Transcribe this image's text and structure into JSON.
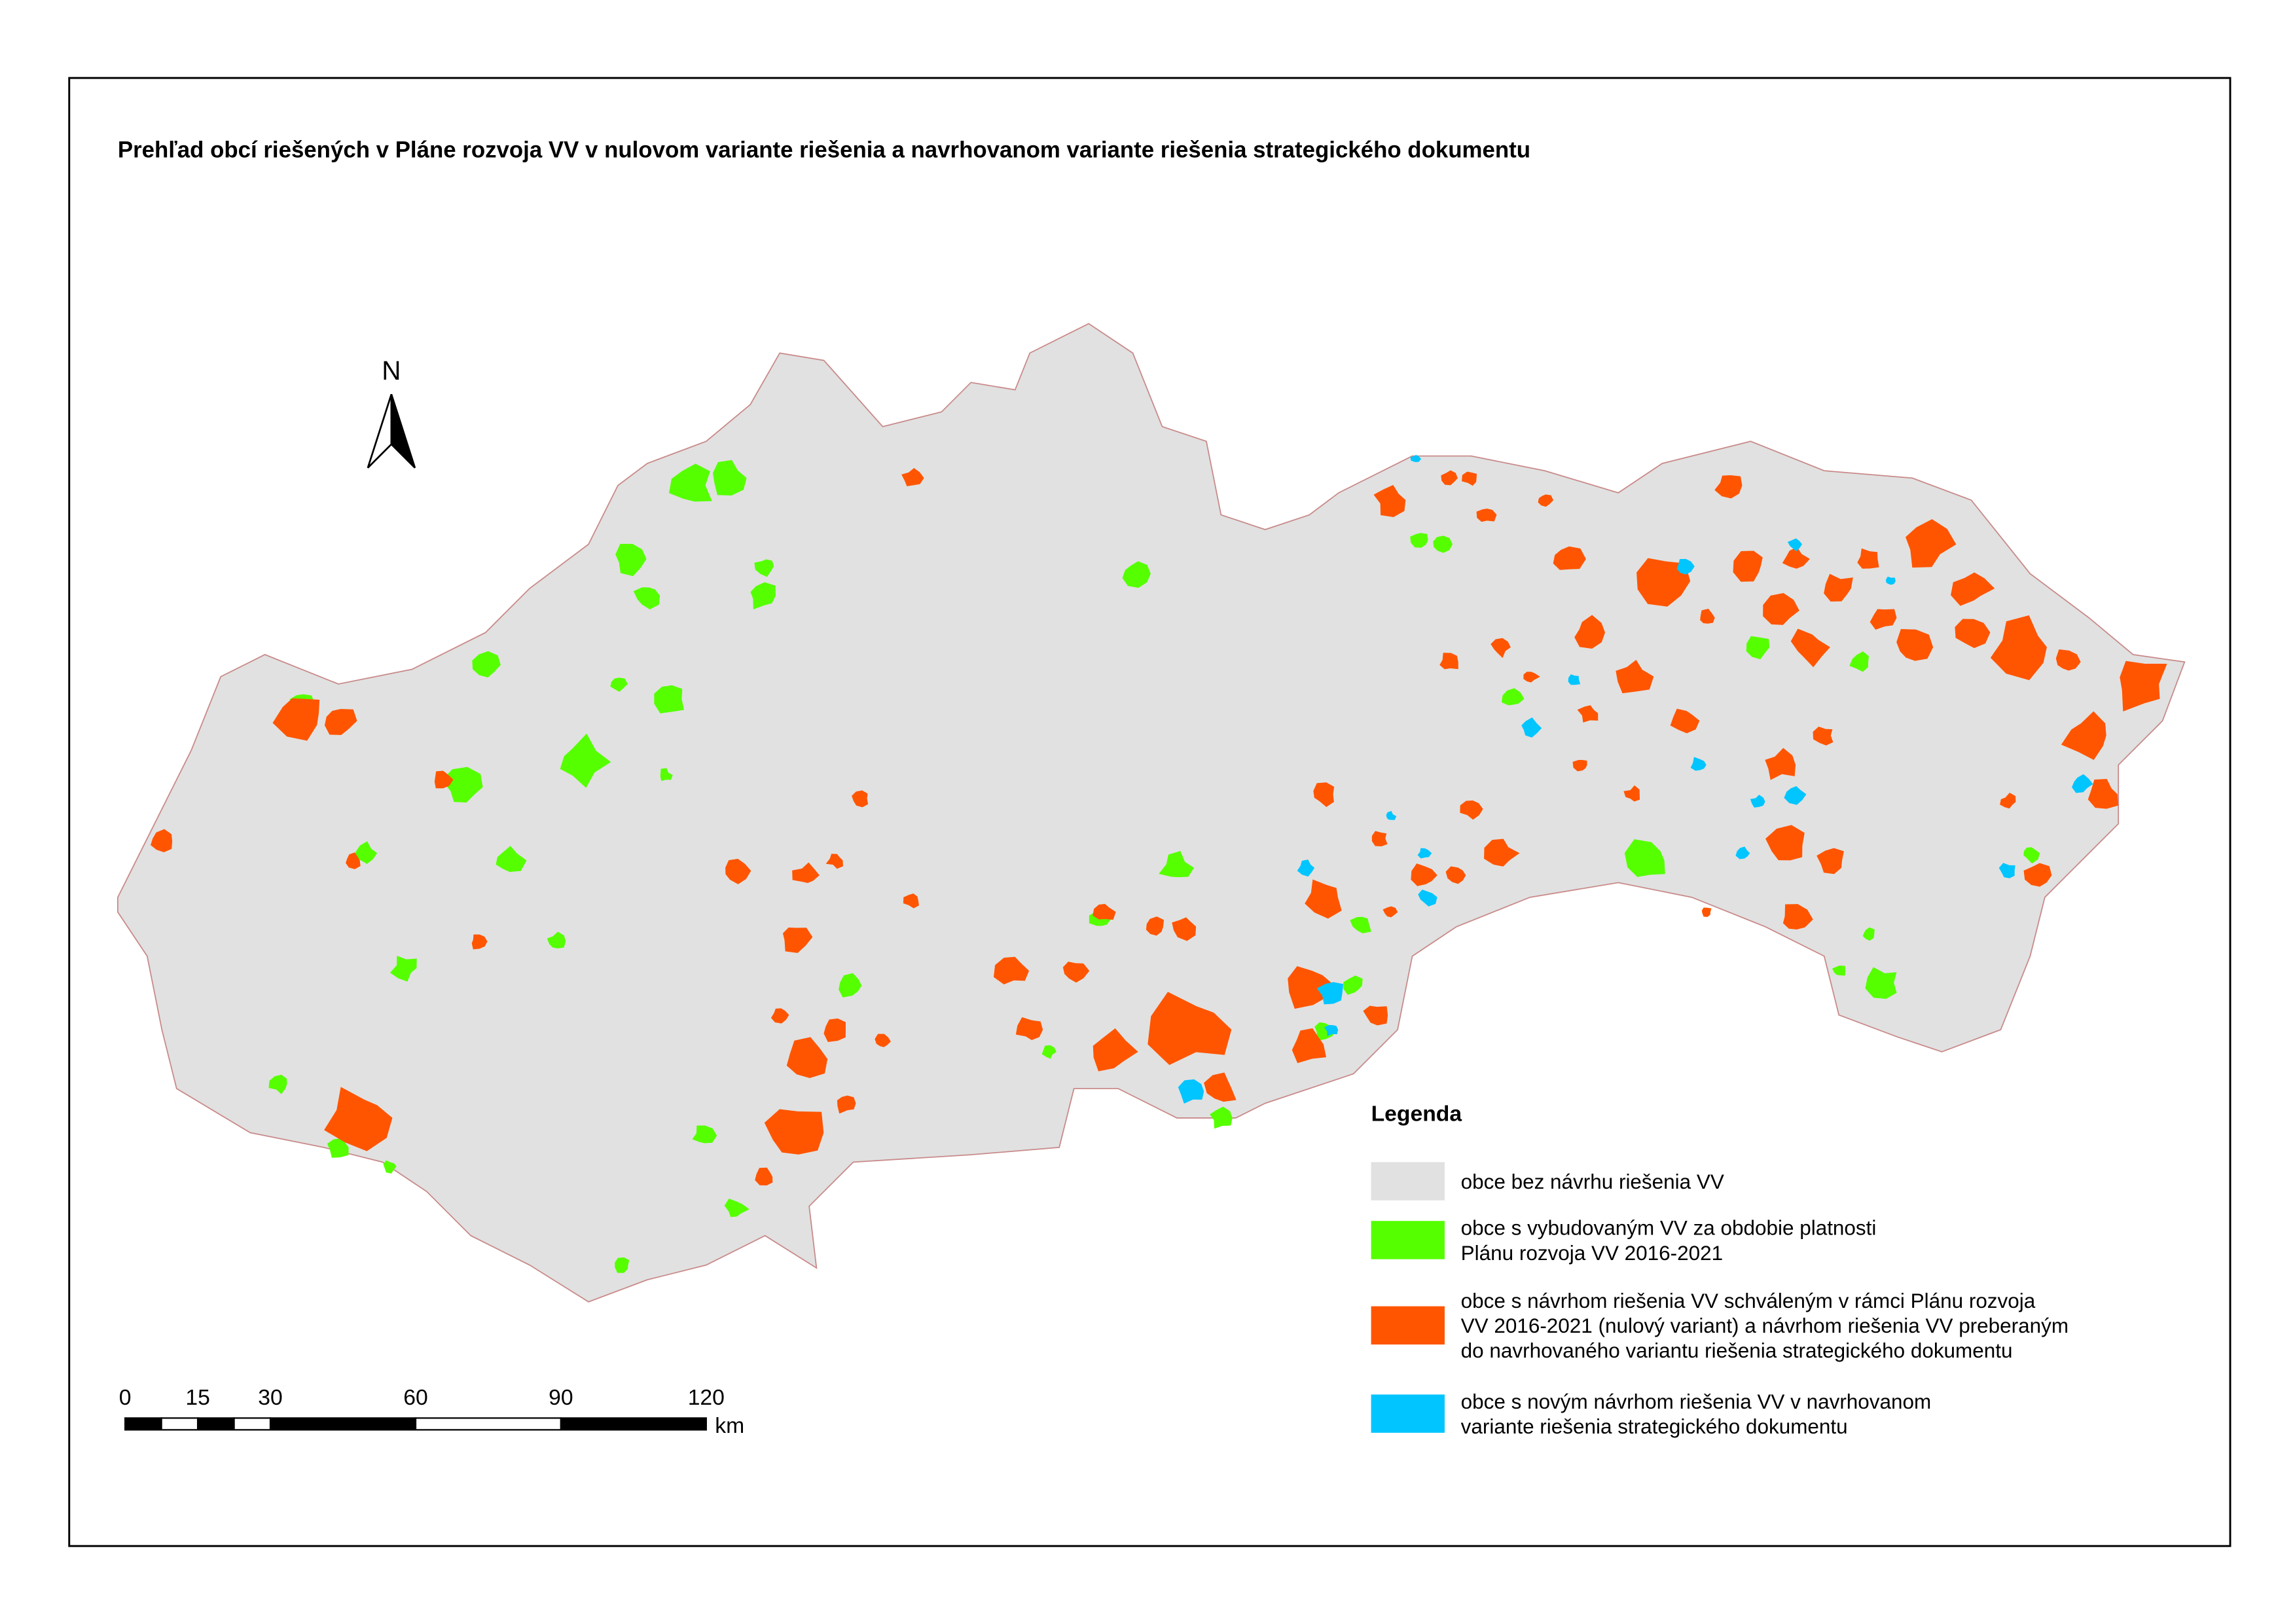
{
  "title": "Prehľad obcí riešených v Pláne rozvoja VV v nulovom variante riešenia a navrhovanom variante riešenia strategického dokumentu",
  "north_arrow": "N",
  "scale_bar": {
    "ticks": [
      0,
      15,
      30,
      60,
      90,
      120
    ],
    "unit": "km"
  },
  "legend": {
    "title": "Legenda",
    "items": [
      {
        "color": "#e1e1e1",
        "lines": [
          "obce bez návrhu riešenia VV"
        ]
      },
      {
        "color": "#55ff00",
        "lines": [
          "obce s vybudovaným VV za obdobie platnosti",
          "Plánu rozvoja VV 2016-2021"
        ]
      },
      {
        "color": "#ff5500",
        "lines": [
          "obce s návrhom riešenia VV schváleným v rámci Plánu rozvoja",
          "VV 2016-2021 (nulový variant) a návrhom riešenia VV preberaným",
          "do navrhovaného variantu riešenia strategického dokumentu"
        ]
      },
      {
        "color": "#00c5ff",
        "lines": [
          "obce s novým návrhom riešenia VV v navrhovanom",
          "variante riešenia strategického dokumentu"
        ]
      }
    ]
  }
}
